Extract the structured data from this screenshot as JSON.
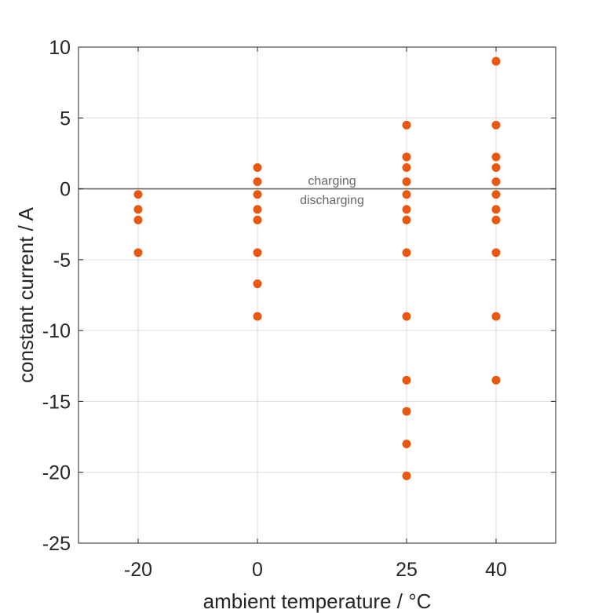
{
  "chart_data": {
    "type": "scatter",
    "title": "",
    "xlabel": "ambient temperature / °C",
    "ylabel": "constant current / A",
    "xlim": [
      -30,
      50
    ],
    "ylim": [
      -25,
      10
    ],
    "x_ticks": [
      -20,
      0,
      25,
      40
    ],
    "x_tick_labels": [
      "-20",
      "0",
      "25",
      "40"
    ],
    "y_ticks": [
      10,
      5,
      0,
      -5,
      -10,
      -15,
      -20,
      -25
    ],
    "y_tick_labels": [
      "10",
      "5",
      "0",
      "-5",
      "-10",
      "-15",
      "-20",
      "-25"
    ],
    "grid": true,
    "marker_color": "#E8590F",
    "reference_line": {
      "y": 0,
      "color": "#666666"
    },
    "annotations": [
      {
        "text": "charging",
        "x": 12.5,
        "y": 0.6
      },
      {
        "text": "discharging",
        "x": 12.5,
        "y": -0.75
      }
    ],
    "series": [
      {
        "points": [
          {
            "x": -20,
            "y": -0.4
          },
          {
            "x": -20,
            "y": -1.45
          },
          {
            "x": -20,
            "y": -2.2
          },
          {
            "x": -20,
            "y": -4.5
          },
          {
            "x": 0,
            "y": 1.5
          },
          {
            "x": 0,
            "y": 0.5
          },
          {
            "x": 0,
            "y": -0.4
          },
          {
            "x": 0,
            "y": -1.45
          },
          {
            "x": 0,
            "y": -2.2
          },
          {
            "x": 0,
            "y": -4.5
          },
          {
            "x": 0,
            "y": -6.7
          },
          {
            "x": 0,
            "y": -9.0
          },
          {
            "x": 25,
            "y": 4.5
          },
          {
            "x": 25,
            "y": 2.25
          },
          {
            "x": 25,
            "y": 1.5
          },
          {
            "x": 25,
            "y": 0.5
          },
          {
            "x": 25,
            "y": -0.4
          },
          {
            "x": 25,
            "y": -1.45
          },
          {
            "x": 25,
            "y": -2.2
          },
          {
            "x": 25,
            "y": -4.5
          },
          {
            "x": 25,
            "y": -9.0
          },
          {
            "x": 25,
            "y": -13.5
          },
          {
            "x": 25,
            "y": -15.7
          },
          {
            "x": 25,
            "y": -18.0
          },
          {
            "x": 25,
            "y": -20.25
          },
          {
            "x": 40,
            "y": 9.0
          },
          {
            "x": 40,
            "y": 4.5
          },
          {
            "x": 40,
            "y": 2.25
          },
          {
            "x": 40,
            "y": 1.5
          },
          {
            "x": 40,
            "y": 0.5
          },
          {
            "x": 40,
            "y": -0.4
          },
          {
            "x": 40,
            "y": -1.45
          },
          {
            "x": 40,
            "y": -2.2
          },
          {
            "x": 40,
            "y": -4.5
          },
          {
            "x": 40,
            "y": -9.0
          },
          {
            "x": 40,
            "y": -13.5
          }
        ]
      }
    ]
  }
}
